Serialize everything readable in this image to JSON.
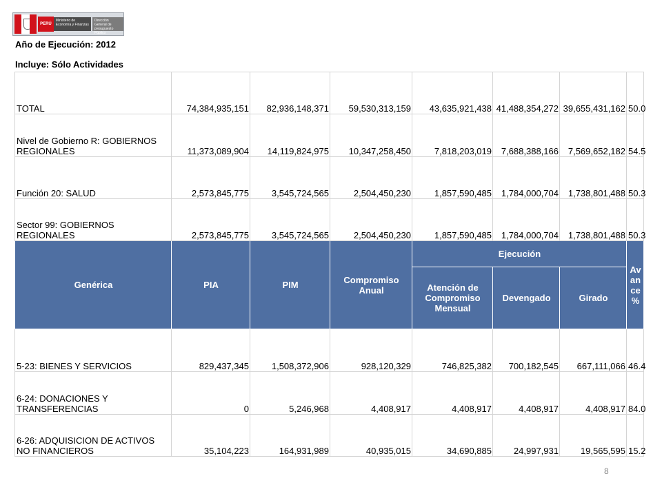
{
  "logo": {
    "peru": "PERÚ",
    "ministry": "Ministerio de Economía y Finanzas",
    "directorate": "Dirección General de presupuesto Público"
  },
  "header": {
    "line1": "Año de Ejecución: 2012",
    "line2": "Incluye: Sólo Actividades"
  },
  "summary_rows": [
    {
      "label": "TOTAL",
      "pia": "74,384,935,151",
      "pim": "82,936,148,371",
      "compromiso": "59,530,313,159",
      "atencion": "43,635,921,438",
      "devengado": "41,488,354,272",
      "girado": "39,655,431,162",
      "avance": "50.0"
    },
    {
      "label": "Nivel de Gobierno R: GOBIERNOS REGIONALES",
      "pia": "11,373,089,904",
      "pim": "14,119,824,975",
      "compromiso": "10,347,258,450",
      "atencion": "7,818,203,019",
      "devengado": "7,688,388,166",
      "girado": "7,569,652,182",
      "avance": "54.5"
    },
    {
      "label": "Función 20: SALUD",
      "pia": "2,573,845,775",
      "pim": "3,545,724,565",
      "compromiso": "2,504,450,230",
      "atencion": "1,857,590,485",
      "devengado": "1,784,000,704",
      "girado": "1,738,801,488",
      "avance": "50.3"
    },
    {
      "label": "Sector 99: GOBIERNOS REGIONALES",
      "pia": "2,573,845,775",
      "pim": "3,545,724,565",
      "compromiso": "2,504,450,230",
      "atencion": "1,857,590,485",
      "devengado": "1,784,000,704",
      "girado": "1,738,801,488",
      "avance": "50.3"
    }
  ],
  "table_header": {
    "generica": "Genérica",
    "pia": "PIA",
    "pim": "PIM",
    "compromiso": "Compromiso Anual",
    "ejecucion": "Ejecución",
    "atencion": "Atención de Compromiso Mensual",
    "devengado": "Devengado",
    "girado": "Girado",
    "avance": "Avance %"
  },
  "detail_rows": [
    {
      "label": "5-23: BIENES Y SERVICIOS",
      "pia": "829,437,345",
      "pim": "1,508,372,906",
      "compromiso": "928,120,329",
      "atencion": "746,825,382",
      "devengado": "700,182,545",
      "girado": "667,111,066",
      "avance": "46.4"
    },
    {
      "label": "6-24: DONACIONES Y TRANSFERENCIAS",
      "pia": "0",
      "pim": "5,246,968",
      "compromiso": "4,408,917",
      "atencion": "4,408,917",
      "devengado": "4,408,917",
      "girado": "4,408,917",
      "avance": "84.0"
    },
    {
      "label": "6-26: ADQUISICION DE ACTIVOS NO FINANCIEROS",
      "pia": "35,104,223",
      "pim": "164,931,989",
      "compromiso": "40,935,015",
      "atencion": "34,690,885",
      "devengado": "24,997,931",
      "girado": "19,565,595",
      "avance": "15.2"
    }
  ],
  "page_number": "8"
}
